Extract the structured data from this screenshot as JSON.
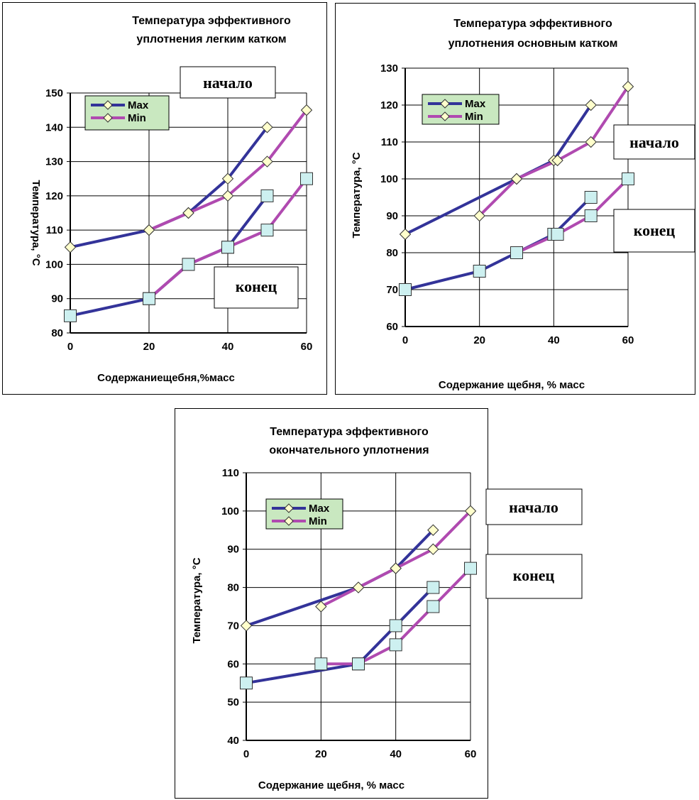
{
  "colors": {
    "max_line": "#333399",
    "min_line": "#b04ab0",
    "diamond_fill": "#ffffcc",
    "square_fill": "#cdf0f0",
    "legend_bg": "#c9e8c0",
    "grid": "#000000"
  },
  "charts": [
    {
      "title_lines": [
        "Температура  эффективного",
        "уплотнения  легким катком"
      ],
      "xlabel": "Содержаниещебня,%масс",
      "ylabel": "Температура, °С",
      "box_start": "начало",
      "box_end": "конец",
      "legend": [
        "Max",
        "Min"
      ]
    },
    {
      "title_lines": [
        "Температура эффективного",
        "уплотнения основным катком"
      ],
      "xlabel": "Содержание щебня, % масс",
      "ylabel": "Температура,  °С",
      "box_start": "начало",
      "box_end": "конец",
      "legend": [
        "Max",
        "Min"
      ]
    },
    {
      "title_lines": [
        "Температура эффективного",
        "окончательного уплотнения"
      ],
      "xlabel": "Содержание щебня, % масс",
      "ylabel": "Температура,  °С",
      "box_start": "начало",
      "box_end": "конец",
      "legend": [
        "Max",
        "Min"
      ]
    }
  ],
  "chart_data": [
    {
      "type": "line",
      "title": "Температура  эффективного уплотнения  легким катком",
      "xlabel": "Содержаниещебня,%масс",
      "ylabel": "Температура, °С",
      "xlim": [
        0,
        60
      ],
      "ylim": [
        80,
        150
      ],
      "xticks": [
        0,
        20,
        40,
        60
      ],
      "yticks": [
        80,
        90,
        100,
        110,
        120,
        130,
        140,
        150
      ],
      "grid": true,
      "legend_position": "top-left",
      "series": [
        {
          "name": "Max",
          "group": "начало",
          "marker": "diamond",
          "x": [
            0,
            20,
            30,
            40,
            50
          ],
          "y": [
            105,
            110,
            115,
            125,
            140
          ]
        },
        {
          "name": "Min",
          "group": "начало",
          "marker": "diamond",
          "x": [
            20,
            30,
            40,
            50,
            60
          ],
          "y": [
            110,
            115,
            120,
            130,
            145
          ]
        },
        {
          "name": "Max",
          "group": "конец",
          "marker": "square",
          "x": [
            0,
            20,
            30,
            40,
            50
          ],
          "y": [
            85,
            90,
            100,
            105,
            120
          ]
        },
        {
          "name": "Min",
          "group": "конец",
          "marker": "square",
          "x": [
            20,
            30,
            40,
            50,
            60
          ],
          "y": [
            90,
            100,
            105,
            110,
            125
          ]
        }
      ]
    },
    {
      "type": "line",
      "title": "Температура эффективного уплотнения основным катком",
      "xlabel": "Содержание щебня, % масс",
      "ylabel": "Температура,  °С",
      "xlim": [
        0,
        60
      ],
      "ylim": [
        60,
        130
      ],
      "xticks": [
        0,
        20,
        40,
        60
      ],
      "yticks": [
        60,
        70,
        80,
        90,
        100,
        110,
        120,
        130
      ],
      "grid": true,
      "legend_position": "top-left",
      "series": [
        {
          "name": "Max",
          "group": "начало",
          "marker": "diamond",
          "x": [
            0,
            30,
            40,
            50
          ],
          "y": [
            85,
            100,
            105,
            120
          ]
        },
        {
          "name": "Min",
          "group": "начало",
          "marker": "diamond",
          "x": [
            20,
            30,
            41,
            50,
            60
          ],
          "y": [
            90,
            100,
            105,
            110,
            125
          ]
        },
        {
          "name": "Max",
          "group": "конец",
          "marker": "square",
          "x": [
            0,
            20,
            30,
            40,
            50
          ],
          "y": [
            70,
            75,
            80,
            85,
            95
          ]
        },
        {
          "name": "Min",
          "group": "конец",
          "marker": "square",
          "x": [
            30,
            41,
            50,
            60
          ],
          "y": [
            80,
            85,
            90,
            100
          ]
        }
      ]
    },
    {
      "type": "line",
      "title": "Температура эффективного окончательного уплотнения",
      "xlabel": "Содержание щебня, % масс",
      "ylabel": "Температура,  °С",
      "xlim": [
        0,
        60
      ],
      "ylim": [
        40,
        110
      ],
      "xticks": [
        0,
        20,
        40,
        60
      ],
      "yticks": [
        40,
        50,
        60,
        70,
        80,
        90,
        100,
        110
      ],
      "grid": true,
      "legend_position": "top-left",
      "series": [
        {
          "name": "Max",
          "group": "начало",
          "marker": "diamond",
          "x": [
            0,
            30,
            40,
            50
          ],
          "y": [
            70,
            80,
            85,
            95
          ]
        },
        {
          "name": "Min",
          "group": "начало",
          "marker": "diamond",
          "x": [
            20,
            30,
            40,
            50,
            60
          ],
          "y": [
            75,
            80,
            85,
            90,
            100
          ]
        },
        {
          "name": "Max",
          "group": "конец",
          "marker": "square",
          "x": [
            0,
            30,
            40,
            50
          ],
          "y": [
            55,
            60,
            70,
            80
          ]
        },
        {
          "name": "Min",
          "group": "конец",
          "marker": "square",
          "x": [
            20,
            30,
            40,
            50,
            60
          ],
          "y": [
            60,
            60,
            65,
            75,
            85
          ]
        }
      ]
    }
  ]
}
